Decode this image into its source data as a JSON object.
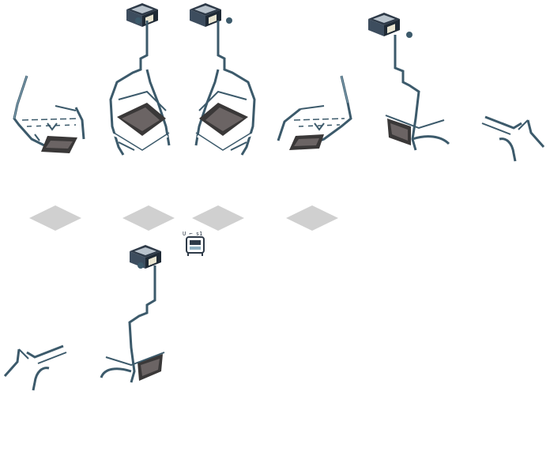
{
  "sheet": {
    "background": "#ffffff",
    "frame_colors": {
      "metal": "#3c5a6b",
      "metal_light": "#8fb0c2",
      "seat_dark": "#3a3838",
      "seat_mid": "#6b6464",
      "shadow": "#d0d0d0",
      "hub_dark": "#2e3a48",
      "hub_light": "#c8c8c8"
    },
    "icon_text": "U ⌐ s1"
  },
  "sprites": [
    {
      "name": "chair-frame-back-left-sprite"
    },
    {
      "name": "chair-hanging-front-left-sprite"
    },
    {
      "name": "chair-hanging-front-right-sprite"
    },
    {
      "name": "chair-frame-back-right-sprite"
    },
    {
      "name": "chair-hanging-side-right-sprite"
    },
    {
      "name": "chair-frame-partial-right-sprite"
    },
    {
      "name": "floor-shadow-tile-1"
    },
    {
      "name": "floor-shadow-tile-2"
    },
    {
      "name": "floor-shadow-tile-3"
    },
    {
      "name": "floor-shadow-tile-4"
    },
    {
      "name": "chair-hanging-side-left-sprite"
    },
    {
      "name": "chair-frame-partial-left-sprite"
    },
    {
      "name": "chairlift-icon"
    }
  ]
}
